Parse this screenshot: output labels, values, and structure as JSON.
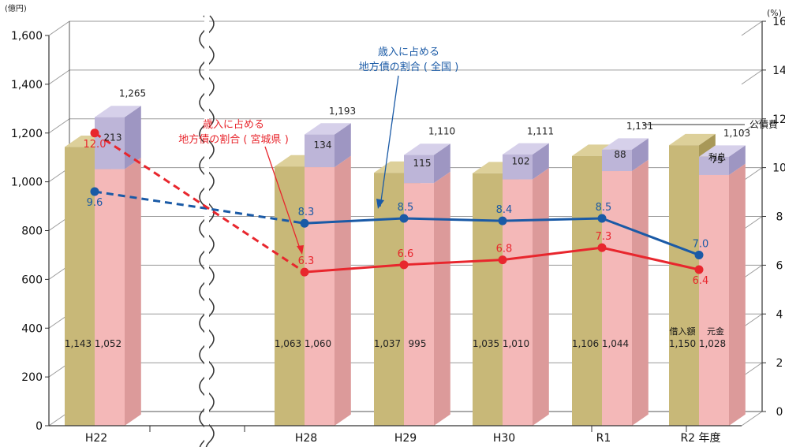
{
  "chart_data": {
    "type": "bar",
    "title": "",
    "left_unit": "(億円)",
    "right_unit": "(%)",
    "xlabel_suffix": "年度",
    "categories": [
      "H22",
      "H28",
      "H29",
      "H30",
      "R1",
      "R2"
    ],
    "left_ylim": [
      0,
      1600
    ],
    "left_ticks": [
      "0",
      "200",
      "400",
      "600",
      "800",
      "1,000",
      "1,200",
      "1,400",
      "1,600"
    ],
    "right_ylim": [
      0,
      16
    ],
    "right_ticks": [
      "0",
      "2",
      "4",
      "6",
      "8",
      "10",
      "12",
      "14",
      "16"
    ],
    "borrowing": {
      "name": "借入額",
      "values": [
        1143,
        1063,
        1037,
        1035,
        1106,
        1150
      ],
      "labels": [
        "1,143",
        "1,063",
        "1,037",
        "1,035",
        "1,106",
        "1,150"
      ],
      "color": "#c8b878"
    },
    "principal": {
      "name": "元金",
      "values": [
        1052,
        1060,
        995,
        1010,
        1044,
        1028
      ],
      "labels": [
        "1,052",
        "1,060",
        "995",
        "1,010",
        "1,044",
        "1,028"
      ],
      "color": "#f4b8b8"
    },
    "interest": {
      "name": "利息",
      "values": [
        213,
        134,
        115,
        102,
        88,
        75
      ],
      "labels": [
        "213",
        "134",
        "115",
        "102",
        "88",
        "75"
      ],
      "color": "#bdb5d8"
    },
    "debt_service": {
      "name": "公債費",
      "values": [
        1265,
        1193,
        1110,
        1111,
        1131,
        1103
      ],
      "labels": [
        "1,265",
        "1,193",
        "1,110",
        "1,111",
        "1,131",
        "1,103"
      ]
    },
    "line_series": [
      {
        "name": "歳入に占める地方債の割合 ( 全国 )",
        "name_lines": [
          "歳入に占める",
          "地方債の割合 ( 全国 )"
        ],
        "values": [
          9.6,
          8.3,
          8.5,
          8.4,
          8.5,
          7.0
        ],
        "labels": [
          "9.6",
          "8.3",
          "8.5",
          "8.4",
          "8.5",
          "7.0"
        ],
        "color": "#1a5aa6"
      },
      {
        "name": "歳入に占める地方債の割合 ( 宮城県 )",
        "name_lines": [
          "歳入に占める",
          "地方債の割合 ( 宮城県 )"
        ],
        "values": [
          12.0,
          6.3,
          6.6,
          6.8,
          7.3,
          6.4
        ],
        "labels": [
          "12.0",
          "6.3",
          "6.6",
          "6.8",
          "7.3",
          "6.4"
        ],
        "color": "#e8262d"
      }
    ],
    "axis_break_between": [
      "H22",
      "H28"
    ],
    "grid": true
  }
}
